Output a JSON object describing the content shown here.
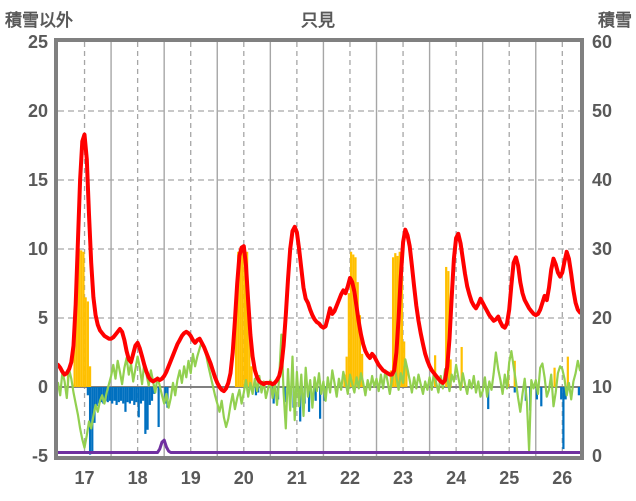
{
  "header": {
    "left_axis_title": "積雪以外",
    "chart_title": "只見",
    "right_axis_title": "積雪"
  },
  "chart_data": {
    "type": "line",
    "station": "只見",
    "x_unit": "hours from day 17 00:00",
    "x_hours_total": 236,
    "x_day_labels": [
      "17",
      "18",
      "19",
      "20",
      "21",
      "22",
      "23",
      "24",
      "25",
      "26"
    ],
    "left_axis": {
      "title": "積雪以外",
      "ticks": [
        25,
        20,
        15,
        10,
        5,
        0,
        -5
      ],
      "min": -5,
      "max": 25
    },
    "right_axis": {
      "title": "積雪",
      "ticks": [
        60,
        50,
        40,
        30,
        20,
        10,
        0
      ],
      "min": 0,
      "max": 60
    },
    "colors": {
      "red_line": "#FF0000",
      "green_line": "#92D050",
      "orange_bar": "#FFC000",
      "blue_bar": "#0070C0",
      "purple_line": "#7030A0",
      "grid": "#A6A6A6",
      "border": "#808080",
      "text": "#595959"
    },
    "series": [
      {
        "name": "red-line-hourly",
        "type": "line",
        "axis": "left",
        "color": "#FF0000",
        "width": 4,
        "values": [
          1.6,
          1.4,
          1.1,
          0.9,
          1.0,
          1.3,
          1.8,
          3.0,
          6.0,
          10.5,
          15.0,
          17.8,
          18.3,
          16.5,
          12.5,
          9.0,
          6.5,
          5.2,
          4.5,
          4.1,
          3.9,
          3.7,
          3.6,
          3.5,
          3.5,
          3.6,
          3.8,
          4.0,
          4.2,
          4.0,
          3.4,
          2.6,
          2.0,
          1.8,
          2.4,
          3.0,
          3.2,
          2.8,
          2.2,
          1.6,
          1.1,
          0.7,
          0.5,
          0.4,
          0.5,
          0.6,
          0.5,
          0.6,
          0.8,
          1.1,
          1.5,
          1.9,
          2.3,
          2.7,
          3.1,
          3.4,
          3.7,
          3.9,
          4.0,
          3.9,
          3.7,
          3.4,
          3.2,
          3.4,
          3.5,
          3.2,
          2.9,
          2.5,
          2.1,
          1.7,
          1.2,
          0.7,
          0.3,
          0.0,
          -0.2,
          -0.3,
          -0.1,
          0.3,
          1.0,
          2.5,
          4.8,
          7.5,
          9.5,
          10.1,
          10.2,
          8.8,
          6.2,
          3.8,
          2.2,
          1.2,
          0.7,
          0.4,
          0.3,
          0.2,
          0.3,
          0.3,
          0.3,
          0.2,
          0.3,
          0.5,
          0.8,
          1.5,
          3.0,
          5.2,
          7.8,
          10.0,
          11.3,
          11.6,
          11.2,
          10.0,
          8.6,
          7.2,
          6.4,
          6.1,
          5.6,
          5.2,
          4.9,
          4.7,
          4.6,
          4.4,
          4.3,
          4.4,
          5.0,
          5.7,
          5.3,
          5.5,
          5.9,
          6.3,
          6.7,
          7.0,
          6.8,
          7.3,
          7.9,
          7.6,
          6.9,
          5.8,
          4.7,
          3.8,
          3.1,
          2.6,
          2.3,
          2.1,
          2.4,
          2.2,
          1.9,
          1.6,
          1.4,
          1.2,
          1.1,
          1.0,
          0.9,
          0.9,
          1.2,
          2.5,
          5.0,
          8.0,
          10.5,
          11.4,
          11.0,
          10.2,
          8.8,
          7.3,
          5.9,
          4.8,
          3.9,
          3.1,
          2.4,
          1.9,
          1.5,
          1.2,
          1.0,
          0.8,
          0.6,
          0.4,
          0.3,
          0.5,
          1.5,
          3.5,
          6.5,
          9.3,
          10.8,
          11.1,
          10.4,
          9.3,
          8.2,
          7.3,
          6.7,
          6.2,
          5.9,
          5.7,
          6.0,
          6.4,
          6.1,
          5.8,
          5.5,
          5.2,
          5.0,
          4.8,
          4.9,
          5.1,
          4.7,
          4.4,
          4.3,
          4.6,
          5.6,
          7.4,
          9.0,
          9.4,
          8.8,
          7.6,
          6.8,
          6.3,
          6.0,
          5.7,
          5.5,
          5.3,
          5.2,
          5.3,
          5.6,
          6.1,
          6.6,
          6.3,
          7.2,
          8.5,
          9.3,
          8.9,
          8.3,
          8.0,
          8.3,
          9.1,
          9.8,
          9.3,
          8.2,
          7.0,
          6.1,
          5.6,
          5.4
        ]
      },
      {
        "name": "green-line-hourly",
        "type": "line",
        "axis": "left",
        "color": "#92D050",
        "width": 2.2,
        "values": [
          0.3,
          -0.6,
          1.1,
          0.4,
          -0.8,
          1.3,
          0.6,
          -0.4,
          -1.2,
          -2.0,
          -3.0,
          -3.8,
          -4.4,
          -3.5,
          -2.5,
          -3.0,
          -2.1,
          -1.3,
          -1.8,
          -1.0,
          -0.6,
          -1.2,
          -0.4,
          0.2,
          0.8,
          1.6,
          0.6,
          1.9,
          1.1,
          0.2,
          1.4,
          2.1,
          0.9,
          1.7,
          0.4,
          1.3,
          2.2,
          1.4,
          0.2,
          1.8,
          0.9,
          0.1,
          1.2,
          0.4,
          -0.4,
          0.7,
          0.1,
          -0.6,
          -1.2,
          -0.5,
          -1.5,
          -0.8,
          0.3,
          -0.6,
          0.5,
          1.2,
          0.3,
          1.5,
          0.7,
          1.9,
          1.0,
          2.4,
          1.5,
          2.2,
          2.8,
          3.3,
          2.8,
          2.3,
          1.5,
          0.8,
          0.1,
          -0.6,
          -1.2,
          -1.8,
          -1.0,
          -2.2,
          -2.9,
          -2.3,
          -1.3,
          -0.5,
          -1.6,
          -0.8,
          -0.2,
          -1.2,
          -0.4,
          0.5,
          -0.7,
          0.3,
          -0.5,
          0.6,
          -0.3,
          0.8,
          -0.4,
          0.4,
          -0.8,
          -0.1,
          0.5,
          -0.8,
          0.4,
          -1.3,
          0.7,
          3.8,
          -0.4,
          -3.0,
          1.3,
          -1.7,
          2.2,
          -2.4,
          1.1,
          -1.4,
          0.9,
          -2.1,
          1.4,
          -0.7,
          0.5,
          -1.5,
          0.7,
          -0.3,
          1.0,
          -0.5,
          0.4,
          -1.0,
          0.7,
          -0.4,
          1.2,
          0.3,
          -0.7,
          0.6,
          -0.2,
          1.1,
          0.4,
          -0.5,
          0.9,
          0.2,
          -0.4,
          0.7,
          -0.1,
          1.0,
          0.3,
          -0.6,
          0.5,
          -0.2,
          0.8,
          0.0,
          0.6,
          -0.3,
          0.9,
          -0.1,
          1.2,
          0.4,
          -0.5,
          0.5,
          1.6,
          0.7,
          -0.2,
          1.0,
          0.3,
          2.0,
          1.3,
          0.5,
          -0.4,
          0.7,
          -0.1,
          0.9,
          0.2,
          -0.5,
          0.4,
          -0.2,
          0.7,
          -0.2,
          1.1,
          0.3,
          -0.4,
          0.8,
          -0.1,
          1.3,
          0.6,
          -0.3,
          0.9,
          0.4,
          1.6,
          0.7,
          -0.2,
          1.0,
          0.2,
          -0.5,
          0.5,
          -0.1,
          0.8,
          -0.4,
          0.4,
          -0.7,
          -0.3,
          0.7,
          -0.7,
          0.4,
          -0.2,
          1.0,
          2.5,
          1.3,
          0.5,
          -0.5,
          0.9,
          -0.1,
          1.8,
          2.6,
          1.5,
          0.4,
          -0.8,
          -1.8,
          -0.5,
          0.6,
          -1.1,
          -4.6,
          0.5,
          -0.1,
          0.5,
          -0.5,
          1.4,
          1.7,
          0.7,
          -0.7,
          -0.2,
          0.9,
          -1.4,
          -0.4,
          1.0,
          1.5,
          1.3,
          0.6,
          -0.6,
          0.3,
          -0.9,
          0.4,
          1.0,
          1.9,
          1.2
        ]
      },
      {
        "name": "orange-bars-hourly",
        "type": "bar",
        "axis": "left",
        "color": "#FFC000",
        "values_by_hour": {
          "4": 1.0,
          "7": 4.5,
          "8": 9.8,
          "9": 10.0,
          "10": 9.9,
          "11": 9.8,
          "12": 6.5,
          "13": 6.2,
          "14": 1.5,
          "80": 5.5,
          "81": 9.8,
          "82": 10.1,
          "83": 10.2,
          "84": 10.0,
          "85": 9.8,
          "86": 4.0,
          "87": 1.5,
          "129": 0.9,
          "130": 2.2,
          "131": 6.8,
          "132": 9.8,
          "133": 9.6,
          "134": 9.4,
          "135": 7.6,
          "136": 5.2,
          "137": 2.4,
          "150": 1.2,
          "151": 9.4,
          "152": 9.7,
          "153": 9.5,
          "154": 9.8,
          "155": 9.6,
          "156": 3.3,
          "157": 1.6,
          "170": 2.3,
          "175": 8.7,
          "176": 8.4,
          "177": 2.0,
          "182": 2.9,
          "203": 1.2,
          "206": 1.9,
          "224": 1.4,
          "230": 2.2
        }
      },
      {
        "name": "blue-bars-hourly",
        "type": "bar",
        "axis": "left",
        "color": "#0070C0",
        "values_by_hour": {
          "13": -0.6,
          "14": -4.9,
          "15": -4.8,
          "16": -2.6,
          "17": -1.4,
          "18": -1.2,
          "19": -1.1,
          "20": -1.2,
          "21": -1.0,
          "22": -1.1,
          "23": -1.0,
          "24": -1.2,
          "25": -1.0,
          "26": -1.3,
          "27": -1.1,
          "28": -1.0,
          "29": -1.2,
          "30": -1.8,
          "31": -1.1,
          "32": -1.2,
          "33": -1.0,
          "34": -1.3,
          "35": -1.1,
          "36": -2.2,
          "37": -1.2,
          "38": -1.0,
          "39": -3.4,
          "40": -3.1,
          "41": -1.3,
          "42": -1.0,
          "43": -0.5,
          "45": -2.9,
          "48": -1.2,
          "49": -1.5,
          "89": -0.6,
          "90": -0.4,
          "97": -1.2,
          "99": -0.9,
          "102": -1.1,
          "106": -1.5,
          "109": -2.5,
          "111": -1.2,
          "113": -1.8,
          "116": -1.0,
          "118": -2.3,
          "120": -1.0,
          "194": -1.6,
          "206": -0.4,
          "211": -1.0,
          "213": -1.7,
          "216": -0.9,
          "218": -1.4,
          "227": -0.9,
          "228": -4.5,
          "229": -0.9,
          "235": -0.6
        }
      },
      {
        "name": "purple-snow-depth-line",
        "type": "line",
        "axis": "right",
        "color": "#7030A0",
        "width": 3,
        "baseline_cm": 0,
        "values_by_hour": {
          "46": 0.5,
          "47": 1.5,
          "48": 1.8,
          "49": 0.8,
          "50": 0.2
        }
      }
    ]
  }
}
